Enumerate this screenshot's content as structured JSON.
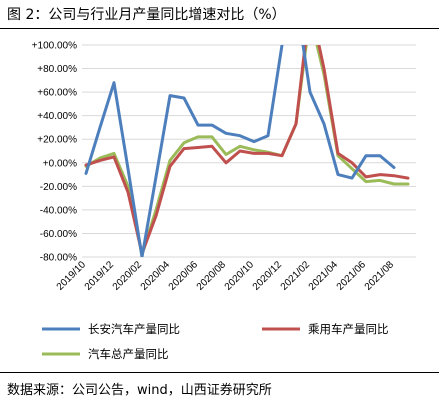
{
  "figure": {
    "title": "图 2：公司与行业月产量同比增速对比（%）",
    "source": "数据来源：公司公告，wind，山西证券研究所"
  },
  "chart_data": {
    "type": "line",
    "title": "",
    "xlabel": "",
    "ylabel": "",
    "ylim": [
      -80,
      100
    ],
    "yticks": [
      -80,
      -60,
      -40,
      -20,
      0,
      20,
      40,
      60,
      80,
      100
    ],
    "ytick_labels": [
      "-80.00%",
      "-60.00%",
      "-40.00%",
      "-20.00%",
      "+0.00%",
      "+20.00%",
      "+40.00%",
      "+60.00%",
      "+80.00%",
      "+100.00%"
    ],
    "x": [
      "2019/10",
      "2019/11",
      "2019/12",
      "2020/01",
      "2020/02",
      "2020/03",
      "2020/04",
      "2020/05",
      "2020/06",
      "2020/07",
      "2020/08",
      "2020/09",
      "2020/10",
      "2020/11",
      "2020/12",
      "2021/01",
      "2021/02",
      "2021/03",
      "2021/04",
      "2021/05",
      "2021/06",
      "2021/07",
      "2021/08",
      "2021/09"
    ],
    "xtick_labels": [
      "2019/10",
      "2019/12",
      "2020/02",
      "2020/04",
      "2020/06",
      "2020/08",
      "2020/10",
      "2020/12",
      "2021/02",
      "2021/04",
      "2021/06",
      "2021/08"
    ],
    "grid": true,
    "legend_position": "bottom",
    "series": [
      {
        "name": "长安汽车产量同比",
        "color": "#4e7fbd",
        "values": [
          -9,
          30,
          68,
          -5,
          -80,
          -12,
          57,
          55,
          32,
          32,
          25,
          23,
          18,
          23,
          100,
          140,
          60,
          33,
          -10,
          -13,
          6,
          6,
          -4,
          null
        ]
      },
      {
        "name": "乘用车产量同比",
        "color": "#c0504d",
        "values": [
          -2,
          2,
          5,
          -25,
          -77,
          -45,
          -3,
          12,
          13,
          14,
          0,
          10,
          8,
          8,
          6,
          33,
          135,
          80,
          8,
          0,
          -12,
          -10,
          -11,
          -13
        ]
      },
      {
        "name": "汽车总产量同比",
        "color": "#9bbb59",
        "values": [
          -3,
          4,
          8,
          -20,
          -78,
          -40,
          2,
          17,
          22,
          22,
          7,
          14,
          11,
          9,
          6,
          33,
          125,
          75,
          6,
          -5,
          -16,
          -15,
          -18,
          -18
        ]
      }
    ]
  }
}
